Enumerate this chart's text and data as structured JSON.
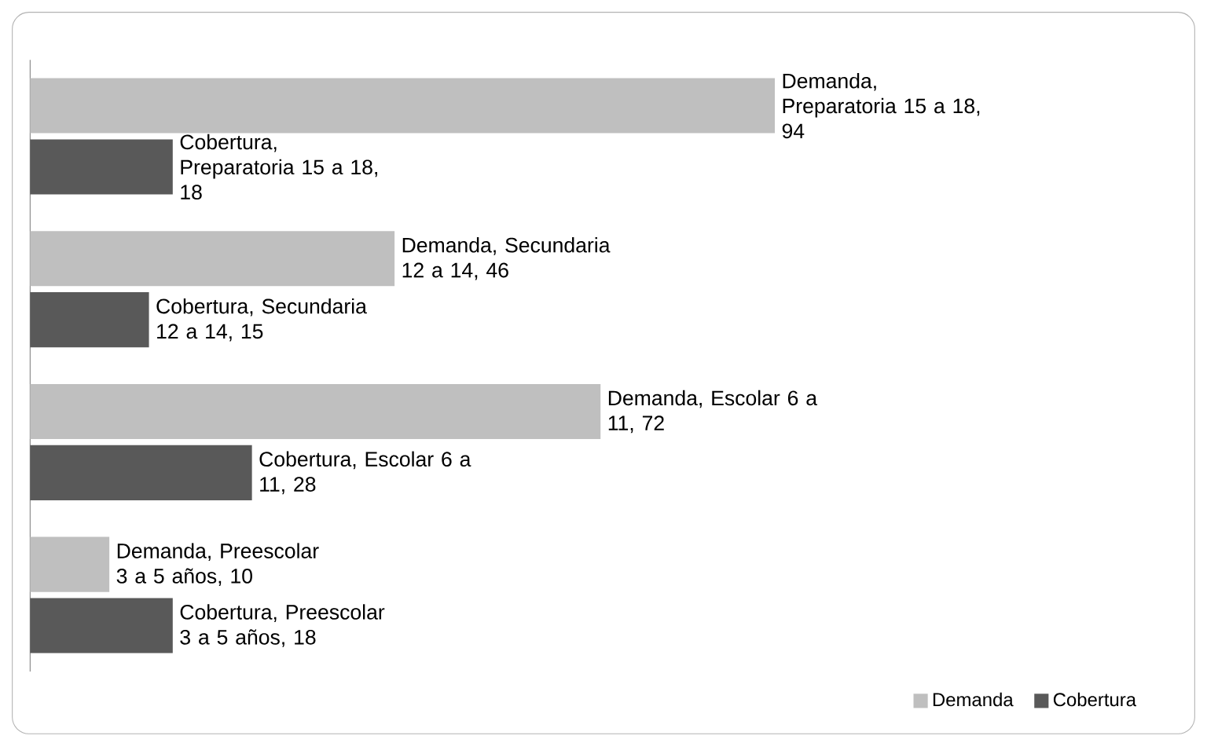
{
  "chart_data": {
    "type": "bar",
    "orientation": "horizontal",
    "categories": [
      null,
      null,
      null,
      null
    ],
    "series": [
      {
        "name": "Demanda",
        "color": "#bfbfbf",
        "values": [
          94,
          46,
          72,
          10
        ],
        "value_labels": [
          "Demanda, Preparatoria 15 a 18, 94",
          "Demanda, Secundaria 12 a 14, 46",
          "Demanda, Escolar 6 a 11, 72",
          "Demanda, Preescolar 3 a 5 años, 10"
        ]
      },
      {
        "name": "Cobertura",
        "color": "#595959",
        "values": [
          18,
          15,
          28,
          18
        ],
        "value_labels": [
          "Cobertura, Preparatoria 15 a 18, 18",
          "Cobertura, Secundaria 12 a 14, 15",
          "Cobertura, Escolar 6 a 11, 28",
          "Cobertura, Preescolar 3 a 5 años, 18"
        ]
      }
    ],
    "legend": "bottom right"
  }
}
